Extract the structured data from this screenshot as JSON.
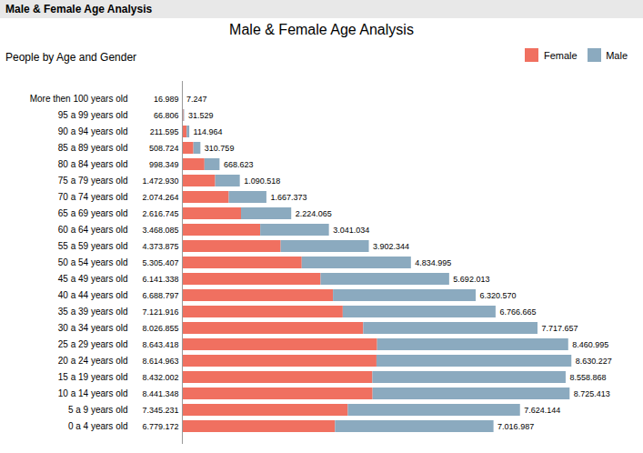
{
  "chart_data": {
    "type": "bar",
    "orientation": "horizontal",
    "stacked": true,
    "title": "Male & Female Age  Analysis",
    "subtitle": "People by Age and Gender",
    "window_title": "Male & Female Age  Analysis",
    "categories": [
      "More then 100 years old",
      "95 a 99 years old",
      "90 a 94 years old",
      "85 a 89 years old",
      "80 a 84 years old",
      "75 a 79 years old",
      "70 a 74 years old",
      "65 a 69 years old",
      "60 a 64 years old",
      "55 a 59 years old",
      "50 a 54 years old",
      "45 a 49 years old",
      "40 a 44 years old",
      "35 a 39 years old",
      "30 a 34 years old",
      "25 a 29 years old",
      "20 a 24 years old",
      "15 a 19 years old",
      "10 a 14 years old",
      "5 a 9 years old",
      "0 a 4 years old"
    ],
    "series": [
      {
        "name": "Female",
        "color": "#F07060",
        "values": [
          16.989,
          66.806,
          211.595,
          508.724,
          998.349,
          1472.93,
          2074.264,
          2616.745,
          3468.085,
          4373.875,
          5305.407,
          6141.338,
          6688.797,
          7121.916,
          8026.855,
          8643.418,
          8614.963,
          8432.002,
          8441.348,
          7345.231,
          6779.172
        ],
        "value_labels": [
          "16.989",
          "66.806",
          "211.595",
          "508.724",
          "998.349",
          "1.472.930",
          "2.074.264",
          "2.616.745",
          "3.468.085",
          "4.373.875",
          "5.305.407",
          "6.141.338",
          "6.688.797",
          "7.121.916",
          "8.026.855",
          "8.643.418",
          "8.614.963",
          "8.432.002",
          "8.441.348",
          "7.345.231",
          "6.779.172"
        ]
      },
      {
        "name": "Male",
        "color": "#8BAABF",
        "values": [
          7.247,
          31.529,
          114.964,
          310.759,
          668.623,
          1090.518,
          1667.373,
          2224.065,
          3041.034,
          3902.344,
          4834.995,
          5692.013,
          6320.57,
          6766.665,
          7717.657,
          8460.995,
          8630.227,
          8558.868,
          8725.413,
          7624.144,
          7016.987
        ],
        "value_labels": [
          "7.247",
          "31.529",
          "114.964",
          "310.759",
          "668.623",
          "1.090.518",
          "1.667.373",
          "2.224.065",
          "3.041.034",
          "3.902.344",
          "4.834.995",
          "5.692.013",
          "6.320.570",
          "6.766.665",
          "7.717.657",
          "8.460.995",
          "8.630.227",
          "8.558.868",
          "8.725.413",
          "7.624.144",
          "7.016.987"
        ]
      }
    ],
    "xlim": [
      0,
      18000
    ],
    "data_labels": true,
    "tick_labels": "y",
    "legend": "upper right"
  }
}
